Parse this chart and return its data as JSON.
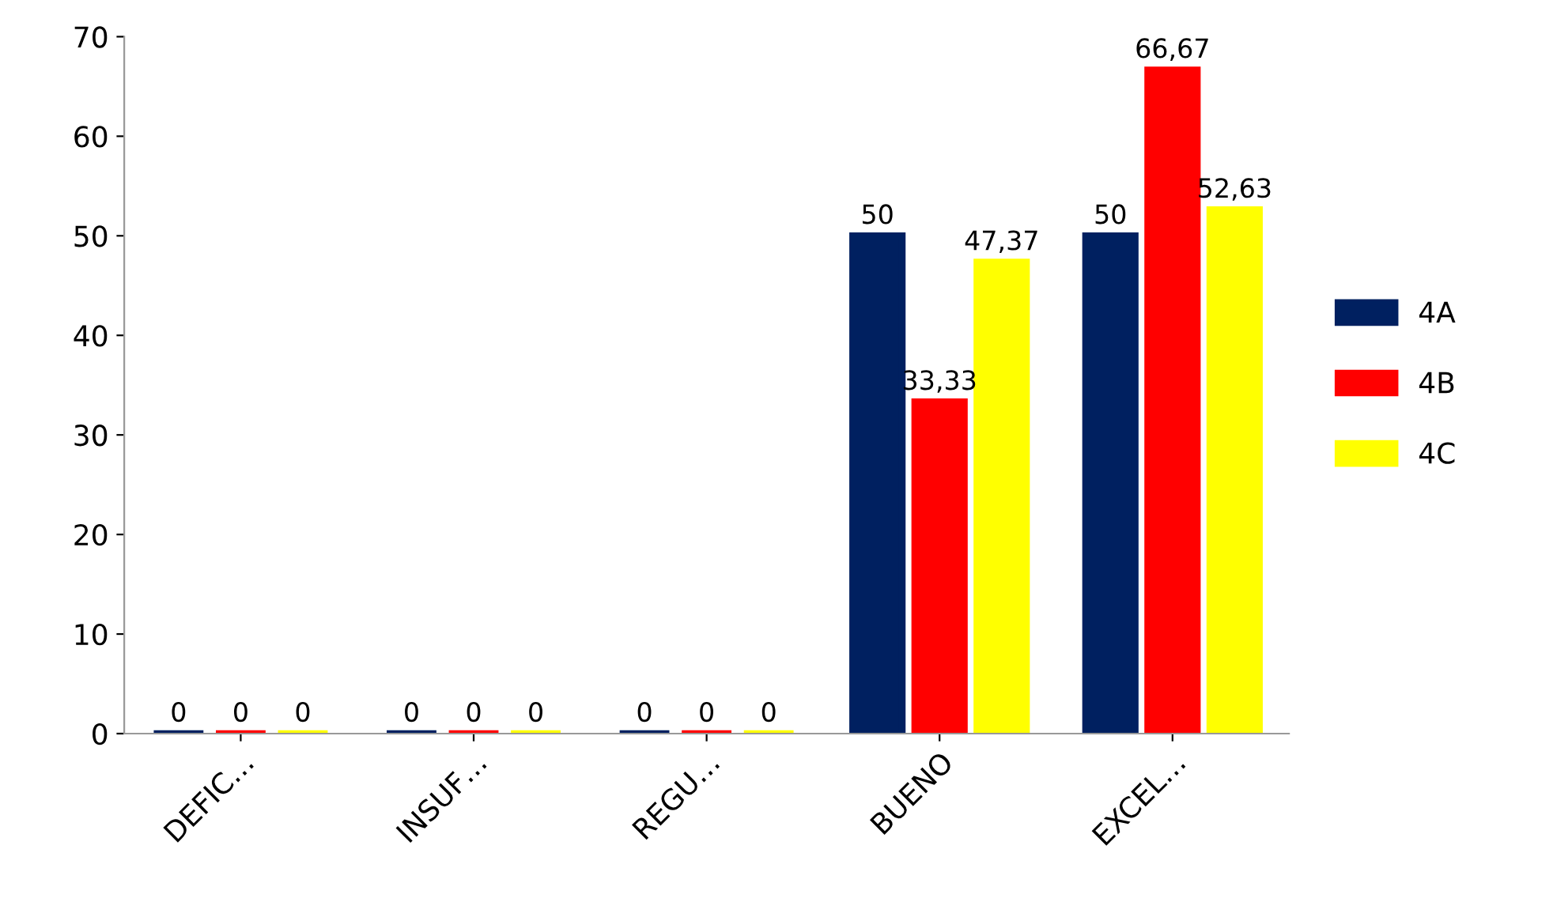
{
  "chart_data": {
    "type": "bar",
    "categories": [
      "DEFIC…",
      "INSUF…",
      "REGU…",
      "BUENO",
      "EXCEL…"
    ],
    "series": [
      {
        "name": "4A",
        "color": "#002060",
        "values": [
          0,
          0,
          0,
          50,
          50
        ],
        "value_labels": [
          "0",
          "0",
          "0",
          "50",
          "50"
        ]
      },
      {
        "name": "4B",
        "color": "#ff0000",
        "values": [
          0,
          0,
          0,
          33.33,
          66.67
        ],
        "value_labels": [
          "0",
          "0",
          "0",
          "33,33",
          "66,67"
        ]
      },
      {
        "name": "4C",
        "color": "#ffff00",
        "values": [
          0,
          0,
          0,
          47.37,
          52.63
        ],
        "value_labels": [
          "0",
          "0",
          "0",
          "47,37",
          "52,63"
        ]
      }
    ],
    "ylim": [
      0,
      70
    ],
    "yticks": [
      0,
      10,
      20,
      30,
      40,
      50,
      60,
      70
    ],
    "grid": false,
    "legend": "right"
  }
}
